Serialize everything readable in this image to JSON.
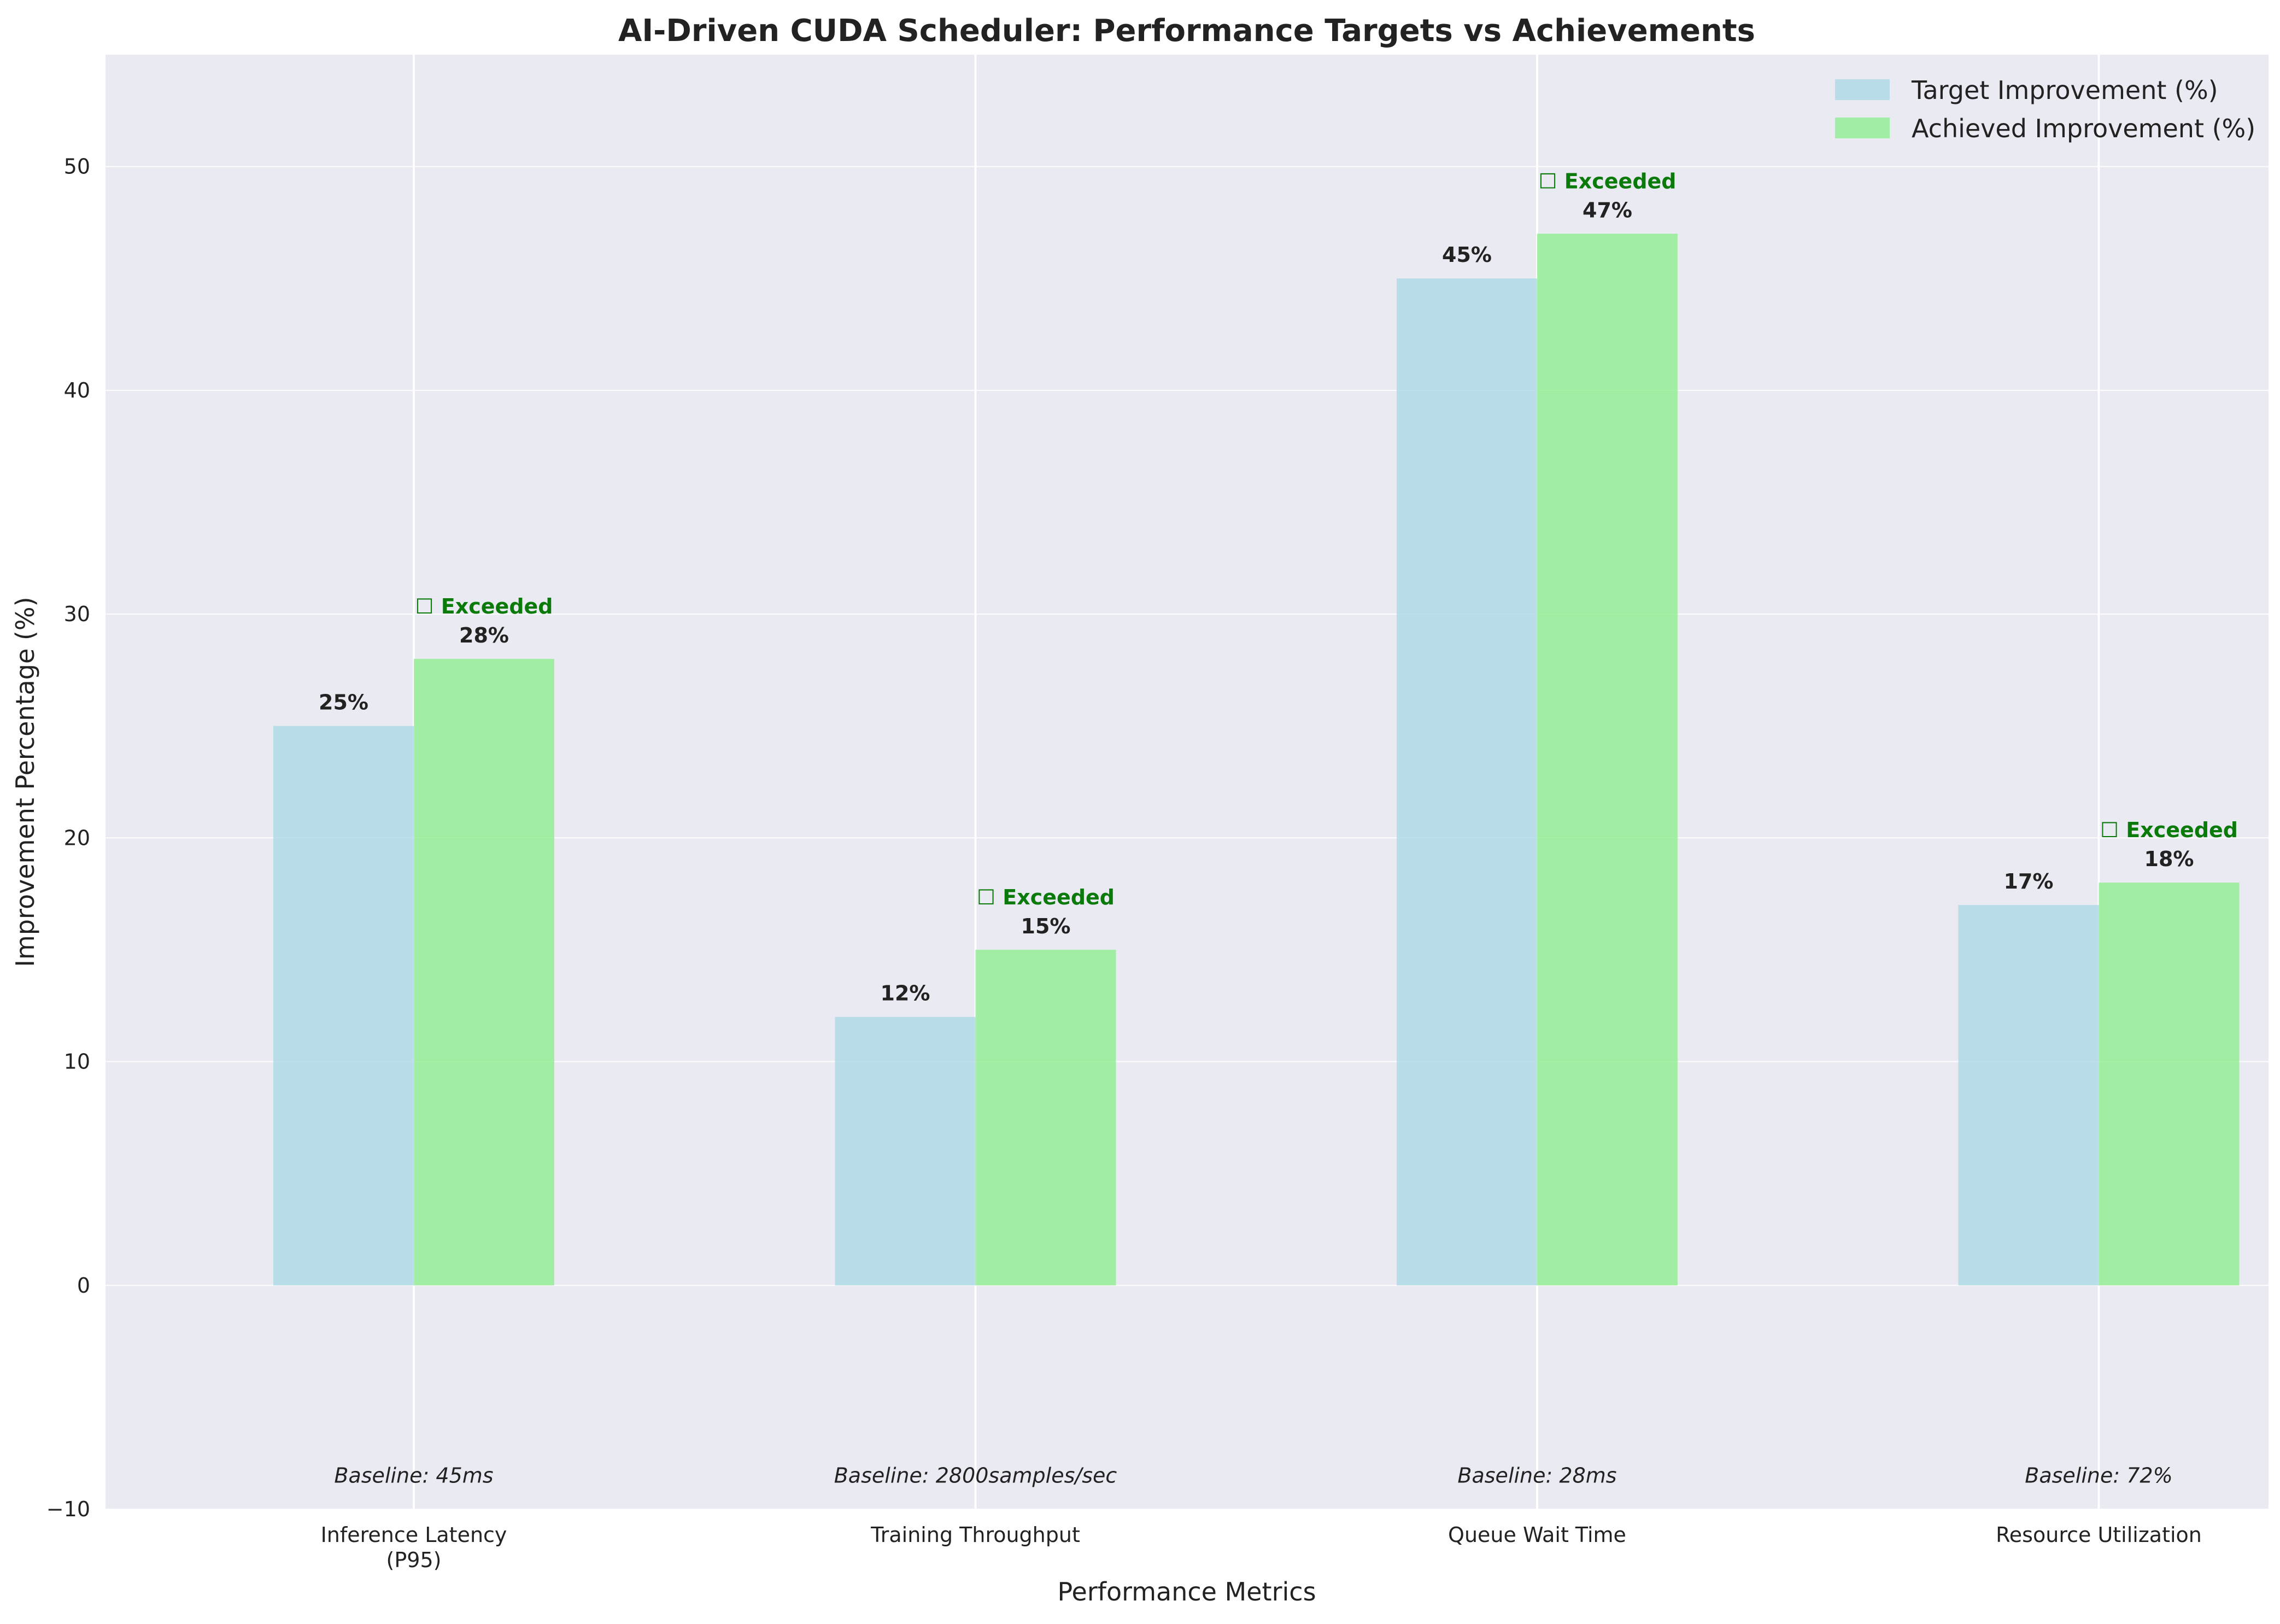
{
  "chart_data": {
    "type": "bar",
    "title": "AI-Driven CUDA Scheduler: Performance Targets vs Achievements",
    "xlabel": "Performance Metrics",
    "ylabel": "Improvement Percentage (%)",
    "ylim": [
      -10,
      55
    ],
    "yticks": [
      -10,
      0,
      10,
      20,
      30,
      40,
      50
    ],
    "ytick_labels": [
      "−10",
      "0",
      "10",
      "20",
      "30",
      "40",
      "50"
    ],
    "grid": true,
    "legend_position": "top-right",
    "categories": [
      "Inference Latency\n(P95)",
      "Training Throughput",
      "Queue Wait Time",
      "Resource Utilization"
    ],
    "series": [
      {
        "name": "Target Improvement (%)",
        "color": "#add8e6",
        "values": [
          25,
          12,
          45,
          17
        ],
        "labels": [
          "25%",
          "12%",
          "45%",
          "17%"
        ]
      },
      {
        "name": "Achieved Improvement (%)",
        "color": "#90ee90",
        "values": [
          28,
          15,
          47,
          18
        ],
        "labels": [
          "28%",
          "15%",
          "47%",
          "18%"
        ]
      }
    ],
    "status_labels": [
      "☐ Exceeded",
      "☐ Exceeded",
      "☐ Exceeded",
      "☐ Exceeded"
    ],
    "status_color": "#0a7a0a",
    "baselines": [
      "Baseline: 45ms",
      "Baseline: 2800samples/sec",
      "Baseline: 28ms",
      "Baseline: 72%"
    ],
    "baseline_y": -8.5,
    "colors": {
      "plot_background": "#eaeaf2",
      "grid": "#ffffff"
    }
  }
}
